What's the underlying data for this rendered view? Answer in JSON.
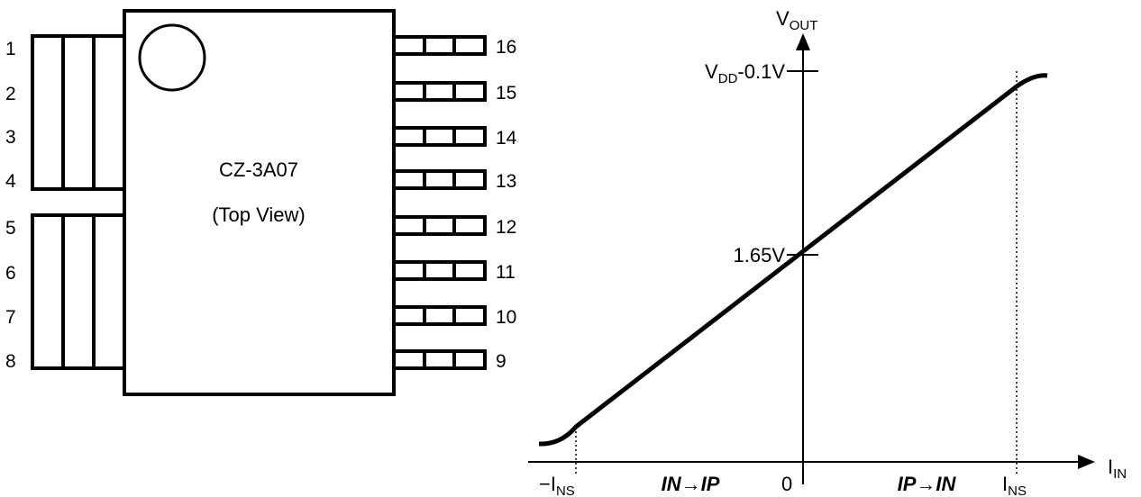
{
  "chip": {
    "name": "CZ-3A07",
    "view": "(Top View)",
    "left_pins": [
      "1",
      "2",
      "3",
      "4",
      "5",
      "6",
      "7",
      "8"
    ],
    "right_pins": [
      "16",
      "15",
      "14",
      "13",
      "12",
      "11",
      "10",
      "9"
    ]
  },
  "graph": {
    "y_axis": {
      "main": "V",
      "sub": "OUT"
    },
    "x_axis": {
      "main": "I",
      "sub": "IN"
    },
    "y_tick_high": {
      "main": "V",
      "sub": "DD",
      "rest": "-0.1V"
    },
    "y_tick_mid": "1.65V",
    "x_tick_neg": {
      "main": "−I",
      "sub": "NS"
    },
    "x_tick_zero": "0",
    "x_tick_pos": {
      "main": "I",
      "sub": "NS"
    },
    "dir_left": "IN→IP",
    "dir_right": "IP→IN"
  }
}
